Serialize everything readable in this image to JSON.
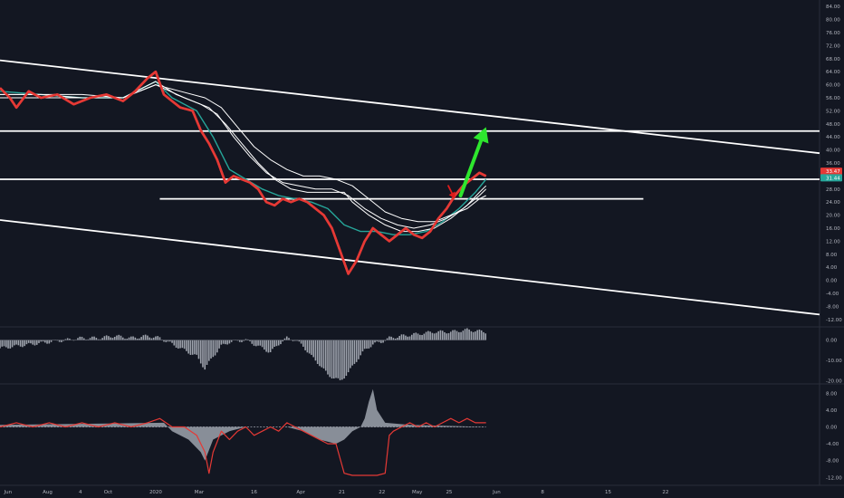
{
  "theme": {
    "background": "#131722",
    "axis_text": "#b2b5be",
    "divider": "#2a2e39",
    "price_red": "#e53935",
    "price_green": "#26a69a",
    "envelope": "#ffffff",
    "trendline": "#ffffff",
    "arrow_up": "#2ee62e",
    "arrow_down": "#e01b1b",
    "histogram": "#9ea3ad",
    "osc_red": "#e53935"
  },
  "x_axis": {
    "labels": [
      "Jun",
      "Aug",
      "4",
      "Oct",
      "2020",
      "Mar",
      "16",
      "Apr",
      "21",
      "22",
      "May",
      "25",
      "Jun",
      "8",
      "15",
      "22"
    ]
  },
  "price_pane": {
    "type": "line",
    "y_ticks": [
      "84.00",
      "80.00",
      "76.00",
      "72.00",
      "68.00",
      "64.00",
      "60.00",
      "56.00",
      "52.00",
      "48.00",
      "44.00",
      "40.00",
      "36.00",
      "32.00",
      "28.00",
      "24.00",
      "20.00",
      "16.00",
      "12.00",
      "8.00",
      "4.00",
      "0.00",
      "-4.00",
      "-8.00",
      "-12.00"
    ],
    "ylim": [
      -14,
      86
    ],
    "last_values": [
      {
        "label": "33.47",
        "value": 33.47,
        "color": "#e53935"
      },
      {
        "label": "31.44",
        "value": 31.44,
        "color": "#26a69a"
      }
    ],
    "horizontal_levels": [
      {
        "value": 45.8,
        "x_from": 0,
        "x_to": 1
      },
      {
        "value": 31.0,
        "x_from": 0,
        "x_to": 1
      },
      {
        "value": 25.0,
        "x_from": 0.195,
        "x_to": 0.785
      }
    ],
    "trendlines": [
      {
        "from": [
          0,
          67.5
        ],
        "to": [
          1,
          39.0
        ]
      },
      {
        "from": [
          0,
          18.5
        ],
        "to": [
          1,
          -10.5
        ]
      }
    ],
    "series": [
      {
        "name": "",
        "role": "price",
        "points": [
          [
            0,
            59
          ],
          [
            0.012,
            56
          ],
          [
            0.02,
            53
          ],
          [
            0.035,
            58
          ],
          [
            0.05,
            56
          ],
          [
            0.07,
            57
          ],
          [
            0.09,
            54
          ],
          [
            0.11,
            56
          ],
          [
            0.13,
            57
          ],
          [
            0.15,
            55
          ],
          [
            0.165,
            58
          ],
          [
            0.18,
            62
          ],
          [
            0.19,
            64
          ],
          [
            0.2,
            57
          ],
          [
            0.21,
            55
          ],
          [
            0.22,
            53
          ],
          [
            0.235,
            52
          ],
          [
            0.245,
            46
          ],
          [
            0.255,
            42
          ],
          [
            0.265,
            37
          ],
          [
            0.275,
            30
          ],
          [
            0.285,
            32
          ],
          [
            0.295,
            31
          ],
          [
            0.305,
            30
          ],
          [
            0.315,
            28
          ],
          [
            0.325,
            24
          ],
          [
            0.335,
            23
          ],
          [
            0.345,
            25
          ],
          [
            0.355,
            24
          ],
          [
            0.365,
            25
          ],
          [
            0.375,
            24
          ],
          [
            0.385,
            22
          ],
          [
            0.395,
            20
          ],
          [
            0.405,
            16
          ],
          [
            0.415,
            9
          ],
          [
            0.425,
            2
          ],
          [
            0.435,
            6
          ],
          [
            0.445,
            12
          ],
          [
            0.455,
            16
          ],
          [
            0.465,
            14
          ],
          [
            0.475,
            12
          ],
          [
            0.485,
            14
          ],
          [
            0.495,
            16
          ],
          [
            0.505,
            14
          ],
          [
            0.515,
            13
          ],
          [
            0.525,
            15
          ],
          [
            0.535,
            19
          ],
          [
            0.545,
            22
          ],
          [
            0.555,
            26
          ],
          [
            0.565,
            29
          ],
          [
            0.575,
            31
          ],
          [
            0.585,
            33
          ],
          [
            0.593,
            32
          ]
        ]
      },
      {
        "name": "",
        "role": "avg",
        "points": [
          [
            0,
            58
          ],
          [
            0.05,
            57
          ],
          [
            0.1,
            56
          ],
          [
            0.15,
            56
          ],
          [
            0.19,
            61
          ],
          [
            0.21,
            56
          ],
          [
            0.24,
            52
          ],
          [
            0.26,
            44
          ],
          [
            0.28,
            34
          ],
          [
            0.3,
            31
          ],
          [
            0.32,
            28
          ],
          [
            0.34,
            26
          ],
          [
            0.36,
            25
          ],
          [
            0.38,
            24
          ],
          [
            0.4,
            22
          ],
          [
            0.42,
            17
          ],
          [
            0.44,
            15
          ],
          [
            0.46,
            15
          ],
          [
            0.48,
            14
          ],
          [
            0.5,
            14
          ],
          [
            0.52,
            15
          ],
          [
            0.54,
            18
          ],
          [
            0.56,
            22
          ],
          [
            0.58,
            27
          ],
          [
            0.593,
            31
          ]
        ]
      },
      {
        "name": "",
        "role": "env",
        "points": [
          [
            0,
            57
          ],
          [
            0.05,
            57
          ],
          [
            0.1,
            56
          ],
          [
            0.15,
            56
          ],
          [
            0.19,
            61
          ],
          [
            0.215,
            57
          ],
          [
            0.245,
            54
          ],
          [
            0.265,
            51
          ],
          [
            0.285,
            44
          ],
          [
            0.305,
            38
          ],
          [
            0.325,
            33
          ],
          [
            0.345,
            30
          ],
          [
            0.365,
            29
          ],
          [
            0.385,
            28
          ],
          [
            0.405,
            28
          ],
          [
            0.425,
            26
          ],
          [
            0.445,
            22
          ],
          [
            0.465,
            19
          ],
          [
            0.485,
            17
          ],
          [
            0.505,
            16
          ],
          [
            0.525,
            17
          ],
          [
            0.545,
            19
          ],
          [
            0.565,
            22
          ],
          [
            0.585,
            26
          ],
          [
            0.593,
            28
          ]
        ]
      },
      {
        "name": "",
        "role": "env",
        "points": [
          [
            0,
            56
          ],
          [
            0.05,
            56
          ],
          [
            0.1,
            56
          ],
          [
            0.15,
            56
          ],
          [
            0.19,
            60
          ],
          [
            0.22,
            58
          ],
          [
            0.25,
            56
          ],
          [
            0.27,
            53
          ],
          [
            0.29,
            47
          ],
          [
            0.31,
            41
          ],
          [
            0.33,
            37
          ],
          [
            0.35,
            34
          ],
          [
            0.37,
            32
          ],
          [
            0.39,
            32
          ],
          [
            0.41,
            31
          ],
          [
            0.43,
            29
          ],
          [
            0.45,
            25
          ],
          [
            0.47,
            21
          ],
          [
            0.49,
            19
          ],
          [
            0.51,
            18
          ],
          [
            0.53,
            18
          ],
          [
            0.55,
            20
          ],
          [
            0.57,
            22
          ],
          [
            0.585,
            25
          ],
          [
            0.593,
            26
          ]
        ]
      },
      {
        "name": "",
        "role": "env",
        "points": [
          [
            0,
            57
          ],
          [
            0.05,
            57
          ],
          [
            0.1,
            57
          ],
          [
            0.15,
            56
          ],
          [
            0.19,
            60
          ],
          [
            0.225,
            56
          ],
          [
            0.255,
            53
          ],
          [
            0.275,
            48
          ],
          [
            0.295,
            42
          ],
          [
            0.315,
            36
          ],
          [
            0.335,
            31
          ],
          [
            0.355,
            28
          ],
          [
            0.375,
            27
          ],
          [
            0.395,
            27
          ],
          [
            0.41,
            27
          ],
          [
            0.42,
            27
          ],
          [
            0.43,
            24
          ],
          [
            0.45,
            20
          ],
          [
            0.47,
            17
          ],
          [
            0.49,
            15
          ],
          [
            0.51,
            15
          ],
          [
            0.53,
            16
          ],
          [
            0.55,
            19
          ],
          [
            0.57,
            23
          ],
          [
            0.585,
            27
          ],
          [
            0.593,
            29
          ]
        ]
      }
    ],
    "annotations": [
      {
        "type": "arrow",
        "color": "#e01b1b",
        "from": [
          0.547,
          29
        ],
        "to": [
          0.555,
          25
        ]
      },
      {
        "type": "arrow",
        "color": "#2ee62e",
        "from": [
          0.562,
          26
        ],
        "to": [
          0.593,
          47
        ]
      }
    ]
  },
  "histogram_pane": {
    "type": "bar",
    "y_ticks": [
      "0.00",
      "-10.00",
      "-20.00"
    ],
    "ylim": [
      -21,
      6
    ],
    "segments": [
      [
        0,
        -4
      ],
      [
        0.02,
        -3
      ],
      [
        0.04,
        -2
      ],
      [
        0.06,
        -1
      ],
      [
        0.08,
        0
      ],
      [
        0.1,
        1
      ],
      [
        0.12,
        1
      ],
      [
        0.14,
        2
      ],
      [
        0.16,
        1
      ],
      [
        0.18,
        2
      ],
      [
        0.195,
        1
      ],
      [
        0.21,
        -2
      ],
      [
        0.225,
        -5
      ],
      [
        0.24,
        -8
      ],
      [
        0.25,
        -14
      ],
      [
        0.26,
        -8
      ],
      [
        0.27,
        -3
      ],
      [
        0.28,
        -1
      ],
      [
        0.3,
        0
      ],
      [
        0.32,
        -4
      ],
      [
        0.33,
        -6
      ],
      [
        0.34,
        -2
      ],
      [
        0.35,
        1
      ],
      [
        0.36,
        0
      ],
      [
        0.37,
        -3
      ],
      [
        0.38,
        -8
      ],
      [
        0.39,
        -12
      ],
      [
        0.4,
        -17
      ],
      [
        0.415,
        -20
      ],
      [
        0.425,
        -16
      ],
      [
        0.435,
        -10
      ],
      [
        0.445,
        -5
      ],
      [
        0.455,
        -2
      ],
      [
        0.465,
        -1
      ],
      [
        0.475,
        1
      ],
      [
        0.49,
        2
      ],
      [
        0.51,
        3
      ],
      [
        0.53,
        4
      ],
      [
        0.55,
        4
      ],
      [
        0.57,
        5
      ],
      [
        0.593,
        4
      ]
    ]
  },
  "oscillator_pane": {
    "type": "line",
    "y_ticks": [
      "8.00",
      "4.00",
      "0.00",
      "-4.00",
      "-8.00",
      "-12.00"
    ],
    "ylim": [
      -13,
      10
    ],
    "line": [
      [
        0,
        0
      ],
      [
        0.02,
        1
      ],
      [
        0.04,
        0
      ],
      [
        0.06,
        1
      ],
      [
        0.08,
        0
      ],
      [
        0.1,
        1
      ],
      [
        0.12,
        0
      ],
      [
        0.14,
        1
      ],
      [
        0.16,
        0
      ],
      [
        0.18,
        1
      ],
      [
        0.195,
        2
      ],
      [
        0.21,
        0
      ],
      [
        0.225,
        0
      ],
      [
        0.24,
        -2
      ],
      [
        0.25,
        -6
      ],
      [
        0.255,
        -11
      ],
      [
        0.26,
        -6
      ],
      [
        0.27,
        -1
      ],
      [
        0.28,
        -3
      ],
      [
        0.29,
        -1
      ],
      [
        0.3,
        0
      ],
      [
        0.31,
        -2
      ],
      [
        0.32,
        -1
      ],
      [
        0.33,
        0
      ],
      [
        0.34,
        -1
      ],
      [
        0.35,
        1
      ],
      [
        0.36,
        0
      ],
      [
        0.37,
        -1
      ],
      [
        0.38,
        -2
      ],
      [
        0.39,
        -3
      ],
      [
        0.4,
        -4
      ],
      [
        0.41,
        -4
      ],
      [
        0.42,
        -11
      ],
      [
        0.43,
        -11.5
      ],
      [
        0.445,
        -11.5
      ],
      [
        0.46,
        -11.5
      ],
      [
        0.47,
        -11
      ],
      [
        0.475,
        -2
      ],
      [
        0.48,
        -1
      ],
      [
        0.49,
        0
      ],
      [
        0.5,
        1
      ],
      [
        0.51,
        0
      ],
      [
        0.52,
        1
      ],
      [
        0.53,
        0
      ],
      [
        0.54,
        1
      ],
      [
        0.55,
        2
      ],
      [
        0.56,
        1
      ],
      [
        0.57,
        2
      ],
      [
        0.58,
        1
      ],
      [
        0.593,
        1
      ]
    ],
    "area": [
      [
        0,
        0.5
      ],
      [
        0.2,
        1
      ],
      [
        0.21,
        -1
      ],
      [
        0.23,
        -3
      ],
      [
        0.245,
        -6
      ],
      [
        0.25,
        -8
      ],
      [
        0.26,
        -3
      ],
      [
        0.28,
        -1
      ],
      [
        0.3,
        0
      ],
      [
        0.35,
        0
      ],
      [
        0.37,
        -1
      ],
      [
        0.39,
        -3
      ],
      [
        0.41,
        -4
      ],
      [
        0.42,
        -3
      ],
      [
        0.43,
        -1
      ],
      [
        0.44,
        0
      ],
      [
        0.445,
        2
      ],
      [
        0.45,
        6
      ],
      [
        0.455,
        9
      ],
      [
        0.46,
        4
      ],
      [
        0.47,
        1
      ],
      [
        0.5,
        0.5
      ],
      [
        0.593,
        0
      ]
    ]
  }
}
